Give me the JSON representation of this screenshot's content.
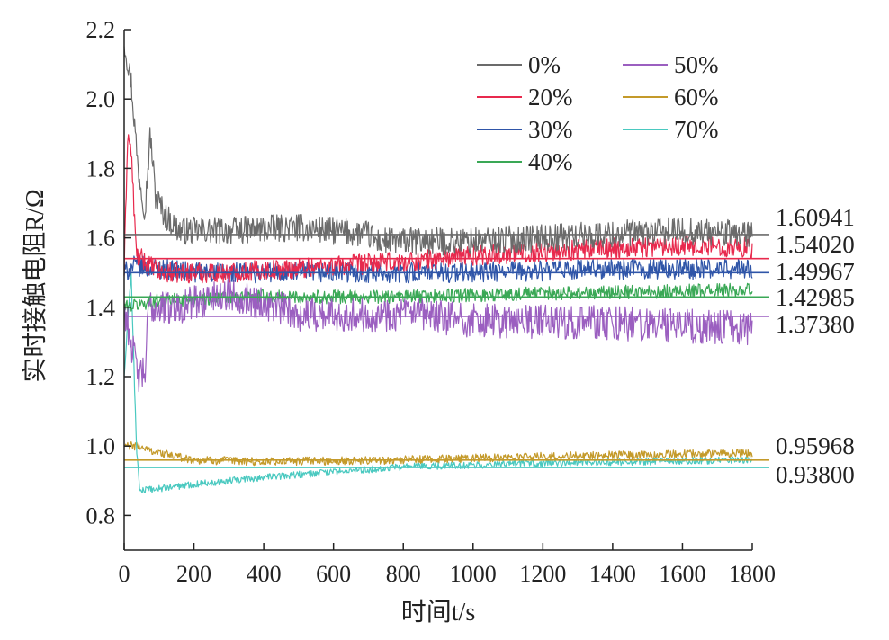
{
  "chart_data": {
    "type": "line",
    "xlabel": "时间t/s",
    "ylabel": "实时接触电阻R/Ω",
    "xlim": [
      0,
      1800
    ],
    "ylim": [
      0.7,
      2.2
    ],
    "x_ticks": [
      "0",
      "200",
      "400",
      "600",
      "800",
      "1000",
      "1200",
      "1400",
      "1600",
      "1800"
    ],
    "y_ticks": [
      "0.8",
      "1.0",
      "1.2",
      "1.4",
      "1.6",
      "1.8",
      "2.0",
      "2.2"
    ],
    "grid": false,
    "legend_position": "top-right, two columns",
    "series": [
      {
        "name": "0%",
        "color": "#6b6b6b",
        "mean_label": "1.60941",
        "mean_value": 1.60941,
        "amplitude": 0.04,
        "points": [
          [
            0,
            2.17
          ],
          [
            20,
            2.05
          ],
          [
            40,
            1.8
          ],
          [
            60,
            1.68
          ],
          [
            75,
            1.9
          ],
          [
            90,
            1.72
          ],
          [
            120,
            1.66
          ],
          [
            160,
            1.62
          ],
          [
            300,
            1.62
          ],
          [
            500,
            1.63
          ],
          [
            700,
            1.61
          ],
          [
            720,
            1.59
          ],
          [
            1000,
            1.59
          ],
          [
            1200,
            1.6
          ],
          [
            1400,
            1.61
          ],
          [
            1600,
            1.62
          ],
          [
            1800,
            1.61
          ]
        ]
      },
      {
        "name": "20%",
        "color": "#e8294d",
        "mean_label": "1.54020",
        "mean_value": 1.5402,
        "amplitude": 0.03,
        "points": [
          [
            0,
            1.5
          ],
          [
            10,
            1.9
          ],
          [
            20,
            1.85
          ],
          [
            35,
            1.55
          ],
          [
            100,
            1.5
          ],
          [
            300,
            1.5
          ],
          [
            600,
            1.52
          ],
          [
            800,
            1.53
          ],
          [
            1000,
            1.55
          ],
          [
            1200,
            1.56
          ],
          [
            1400,
            1.57
          ],
          [
            1600,
            1.58
          ],
          [
            1800,
            1.57
          ]
        ]
      },
      {
        "name": "30%",
        "color": "#2f55a8",
        "mean_label": "1.49967",
        "mean_value": 1.49967,
        "amplitude": 0.03,
        "points": [
          [
            0,
            1.5
          ],
          [
            30,
            1.52
          ],
          [
            200,
            1.5
          ],
          [
            600,
            1.5
          ],
          [
            1000,
            1.5
          ],
          [
            1400,
            1.51
          ],
          [
            1800,
            1.51
          ]
        ]
      },
      {
        "name": "40%",
        "color": "#3aa856",
        "mean_label": "1.42985",
        "mean_value": 1.42985,
        "amplitude": 0.02,
        "points": [
          [
            0,
            1.4
          ],
          [
            100,
            1.42
          ],
          [
            400,
            1.43
          ],
          [
            800,
            1.43
          ],
          [
            1200,
            1.44
          ],
          [
            1800,
            1.45
          ]
        ]
      },
      {
        "name": "50%",
        "color": "#9b5fc0",
        "mean_label": "1.37380",
        "mean_value": 1.3738,
        "amplitude": 0.05,
        "points": [
          [
            0,
            1.4
          ],
          [
            20,
            1.3
          ],
          [
            40,
            1.2
          ],
          [
            60,
            1.21
          ],
          [
            70,
            1.4
          ],
          [
            150,
            1.4
          ],
          [
            300,
            1.44
          ],
          [
            500,
            1.38
          ],
          [
            800,
            1.38
          ],
          [
            1000,
            1.36
          ],
          [
            1200,
            1.36
          ],
          [
            1500,
            1.35
          ],
          [
            1800,
            1.34
          ]
        ]
      },
      {
        "name": "60%",
        "color": "#c49a2a",
        "mean_label": "0.95968",
        "mean_value": 0.95968,
        "amplitude": 0.012,
        "points": [
          [
            0,
            1.0
          ],
          [
            40,
            1.0
          ],
          [
            100,
            0.98
          ],
          [
            200,
            0.96
          ],
          [
            400,
            0.955
          ],
          [
            800,
            0.96
          ],
          [
            1200,
            0.97
          ],
          [
            1800,
            0.98
          ]
        ]
      },
      {
        "name": "70%",
        "color": "#4ac9c0",
        "mean_label": "0.93800",
        "mean_value": 0.938,
        "amplitude": 0.01,
        "points": [
          [
            0,
            1.2
          ],
          [
            20,
            1.5
          ],
          [
            35,
            1.0
          ],
          [
            45,
            0.87
          ],
          [
            200,
            0.89
          ],
          [
            400,
            0.91
          ],
          [
            800,
            0.94
          ],
          [
            1200,
            0.95
          ],
          [
            1800,
            0.96
          ]
        ]
      }
    ]
  }
}
